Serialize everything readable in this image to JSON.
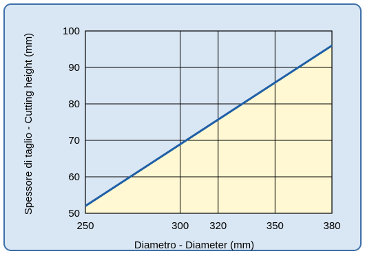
{
  "chart_data": {
    "type": "area",
    "title": "",
    "xlabel": "Diametro - Diameter (mm)",
    "ylabel": "Spessore di taglio - Cutting height (mm)",
    "x_ticks": [
      250,
      300,
      320,
      350,
      380
    ],
    "y_ticks": [
      50,
      60,
      70,
      80,
      90,
      100
    ],
    "xlim": [
      250,
      380
    ],
    "ylim": [
      50,
      100
    ],
    "grid": true,
    "series": [
      {
        "x": [
          250,
          380
        ],
        "y": [
          52,
          96
        ]
      }
    ],
    "colors": {
      "background_panel": "#d9e6f3",
      "panel_border": "#3d6fa8",
      "area_fill": "#fff8d2",
      "line": "#1f5fa6",
      "grid": "#000000"
    }
  }
}
